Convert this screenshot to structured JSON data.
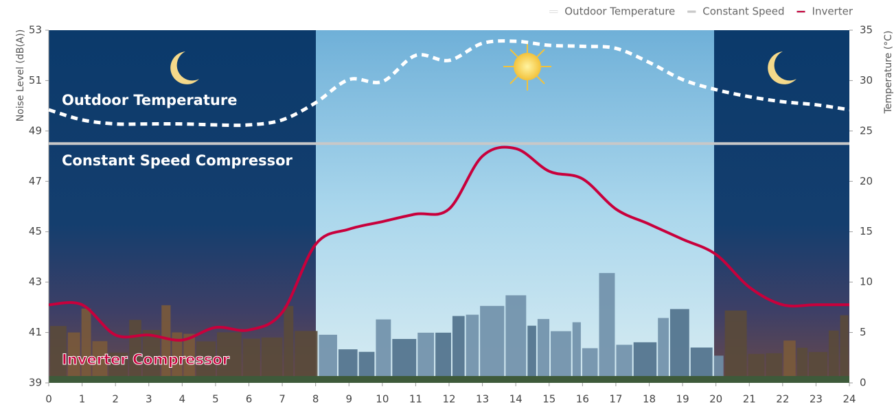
{
  "chart_data": {
    "type": "line",
    "ylabel": "Noise Level (dB(A))",
    "y2label": "Temperature (°C)",
    "annotations": [
      "Outdoor Temperature",
      "Constant Speed Compressor",
      "Inverter Compressor"
    ],
    "x": [
      0,
      1,
      2,
      3,
      4,
      5,
      6,
      7,
      8,
      9,
      10,
      11,
      12,
      13,
      14,
      15,
      16,
      17,
      18,
      19,
      20,
      21,
      22,
      23,
      24
    ],
    "xlim": [
      0,
      24
    ],
    "xticks": [
      0,
      1,
      2,
      3,
      4,
      5,
      6,
      7,
      8,
      9,
      10,
      11,
      12,
      13,
      14,
      15,
      16,
      17,
      18,
      19,
      20,
      21,
      22,
      23,
      24
    ],
    "ylim": [
      39,
      53
    ],
    "yticks": [
      39,
      41,
      43,
      45,
      47,
      49,
      51,
      53
    ],
    "y2lim": [
      0,
      35
    ],
    "y2ticks": [
      0,
      5,
      10,
      15,
      20,
      25,
      30,
      35
    ],
    "legend_position": "top-right",
    "series": [
      {
        "name": "Outdoor Temperature",
        "color": "#ffffff",
        "style": "dotted",
        "axis": "y2",
        "values": [
          27.1,
          26.1,
          25.7,
          25.7,
          25.7,
          25.6,
          25.6,
          26.1,
          27.8,
          30.1,
          29.9,
          32.5,
          32.0,
          33.7,
          33.9,
          33.5,
          33.4,
          33.2,
          31.8,
          30.1,
          29.1,
          28.4,
          27.9,
          27.6,
          27.1
        ]
      },
      {
        "name": "Constant Speed",
        "color": "#c8c8c8",
        "style": "solid",
        "values": [
          48.5,
          48.5,
          48.5,
          48.5,
          48.5,
          48.5,
          48.5,
          48.5,
          48.5,
          48.5,
          48.5,
          48.5,
          48.5,
          48.5,
          48.5,
          48.5,
          48.5,
          48.5,
          48.5,
          48.5,
          48.5,
          48.5,
          48.5,
          48.5,
          48.5
        ]
      },
      {
        "name": "Inverter",
        "color": "#c8003c",
        "style": "solid",
        "values": [
          42.1,
          42.1,
          40.9,
          40.9,
          40.7,
          41.2,
          41.1,
          41.8,
          44.5,
          45.1,
          45.4,
          45.7,
          45.9,
          48.0,
          48.3,
          47.4,
          47.1,
          45.9,
          45.3,
          44.7,
          44.1,
          42.8,
          42.1,
          42.1,
          42.1
        ]
      }
    ]
  }
}
